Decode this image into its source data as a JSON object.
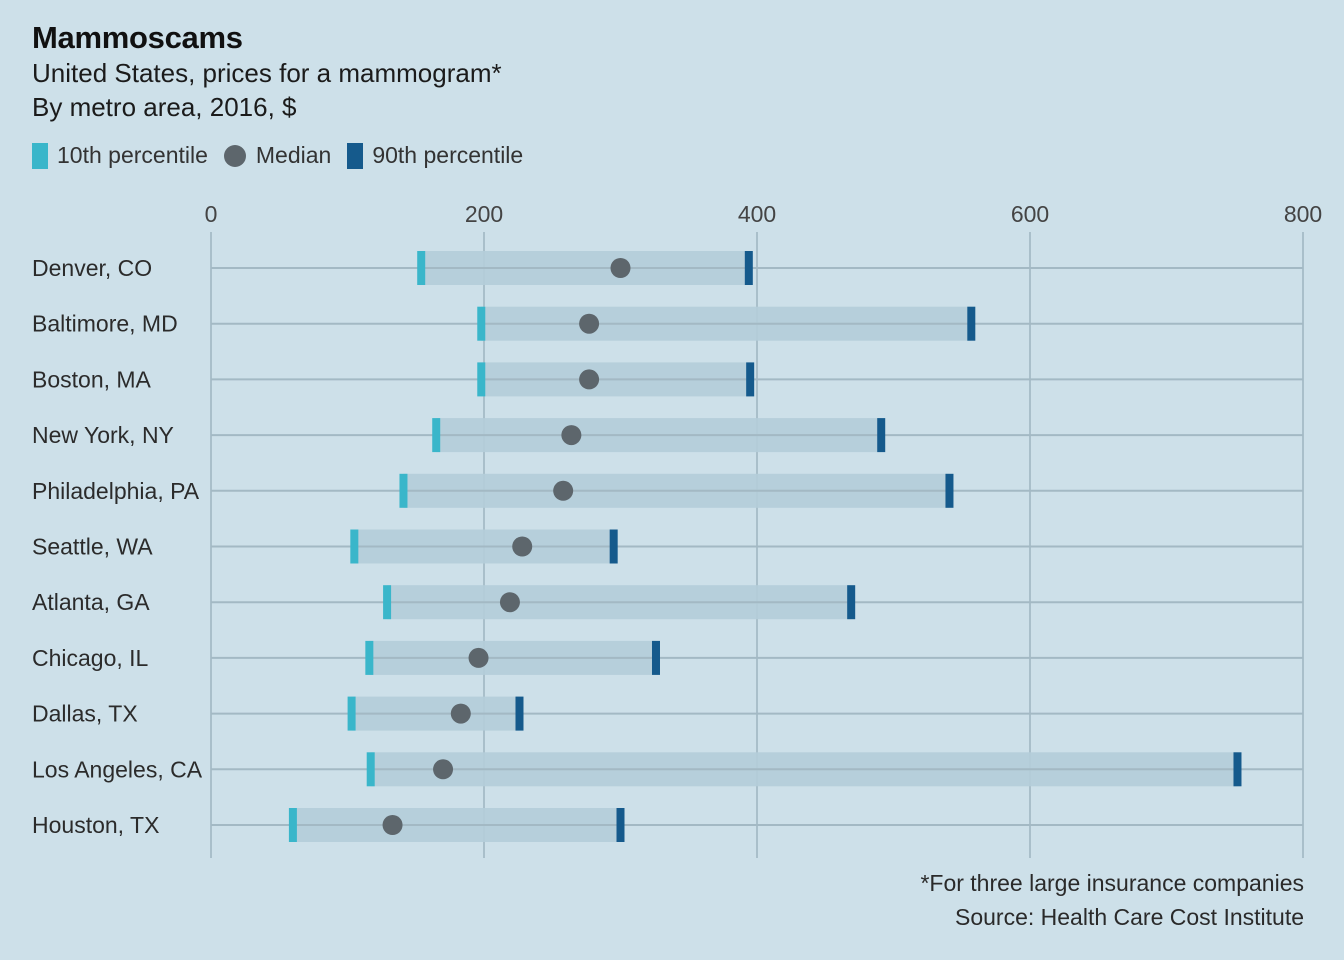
{
  "title": "Mammoscams",
  "subtitle_line1": "United States, prices for a mammogram*",
  "subtitle_line2": "By metro area, 2016, $",
  "legend": {
    "p10": "10th percentile",
    "median": "Median",
    "p90": "90th percentile"
  },
  "footnote": "*For three large insurance companies",
  "source": "Source: Health Care Cost Institute",
  "colors": {
    "background": "#cde0e9",
    "range_bar": "#b4cdd9",
    "p10": "#3ab6ca",
    "median": "#5d666c",
    "p90": "#155a8c",
    "grid": "#a9bfca",
    "row_line": "#a3b9c4"
  },
  "chart_data": {
    "type": "range-dot",
    "x_ticks": [
      0,
      200,
      400,
      600,
      800
    ],
    "xlim": [
      0,
      800
    ],
    "grid": true,
    "legend_position": "top-left",
    "categories": [
      "Denver, CO",
      "Baltimore, MD",
      "Boston, MA",
      "New York, NY",
      "Philadelphia, PA",
      "Seattle, WA",
      "Atlanta, GA",
      "Chicago, IL",
      "Dallas, TX",
      "Los Angeles, CA",
      "Houston, TX"
    ],
    "series": [
      {
        "name": "10th percentile",
        "values": [
          154,
          198,
          198,
          165,
          141,
          105,
          129,
          116,
          103,
          117,
          60
        ]
      },
      {
        "name": "Median",
        "values": [
          300,
          277,
          277,
          264,
          258,
          228,
          219,
          196,
          183,
          170,
          133
        ]
      },
      {
        "name": "90th percentile",
        "values": [
          394,
          557,
          395,
          491,
          541,
          295,
          469,
          326,
          226,
          752,
          300
        ]
      }
    ]
  }
}
